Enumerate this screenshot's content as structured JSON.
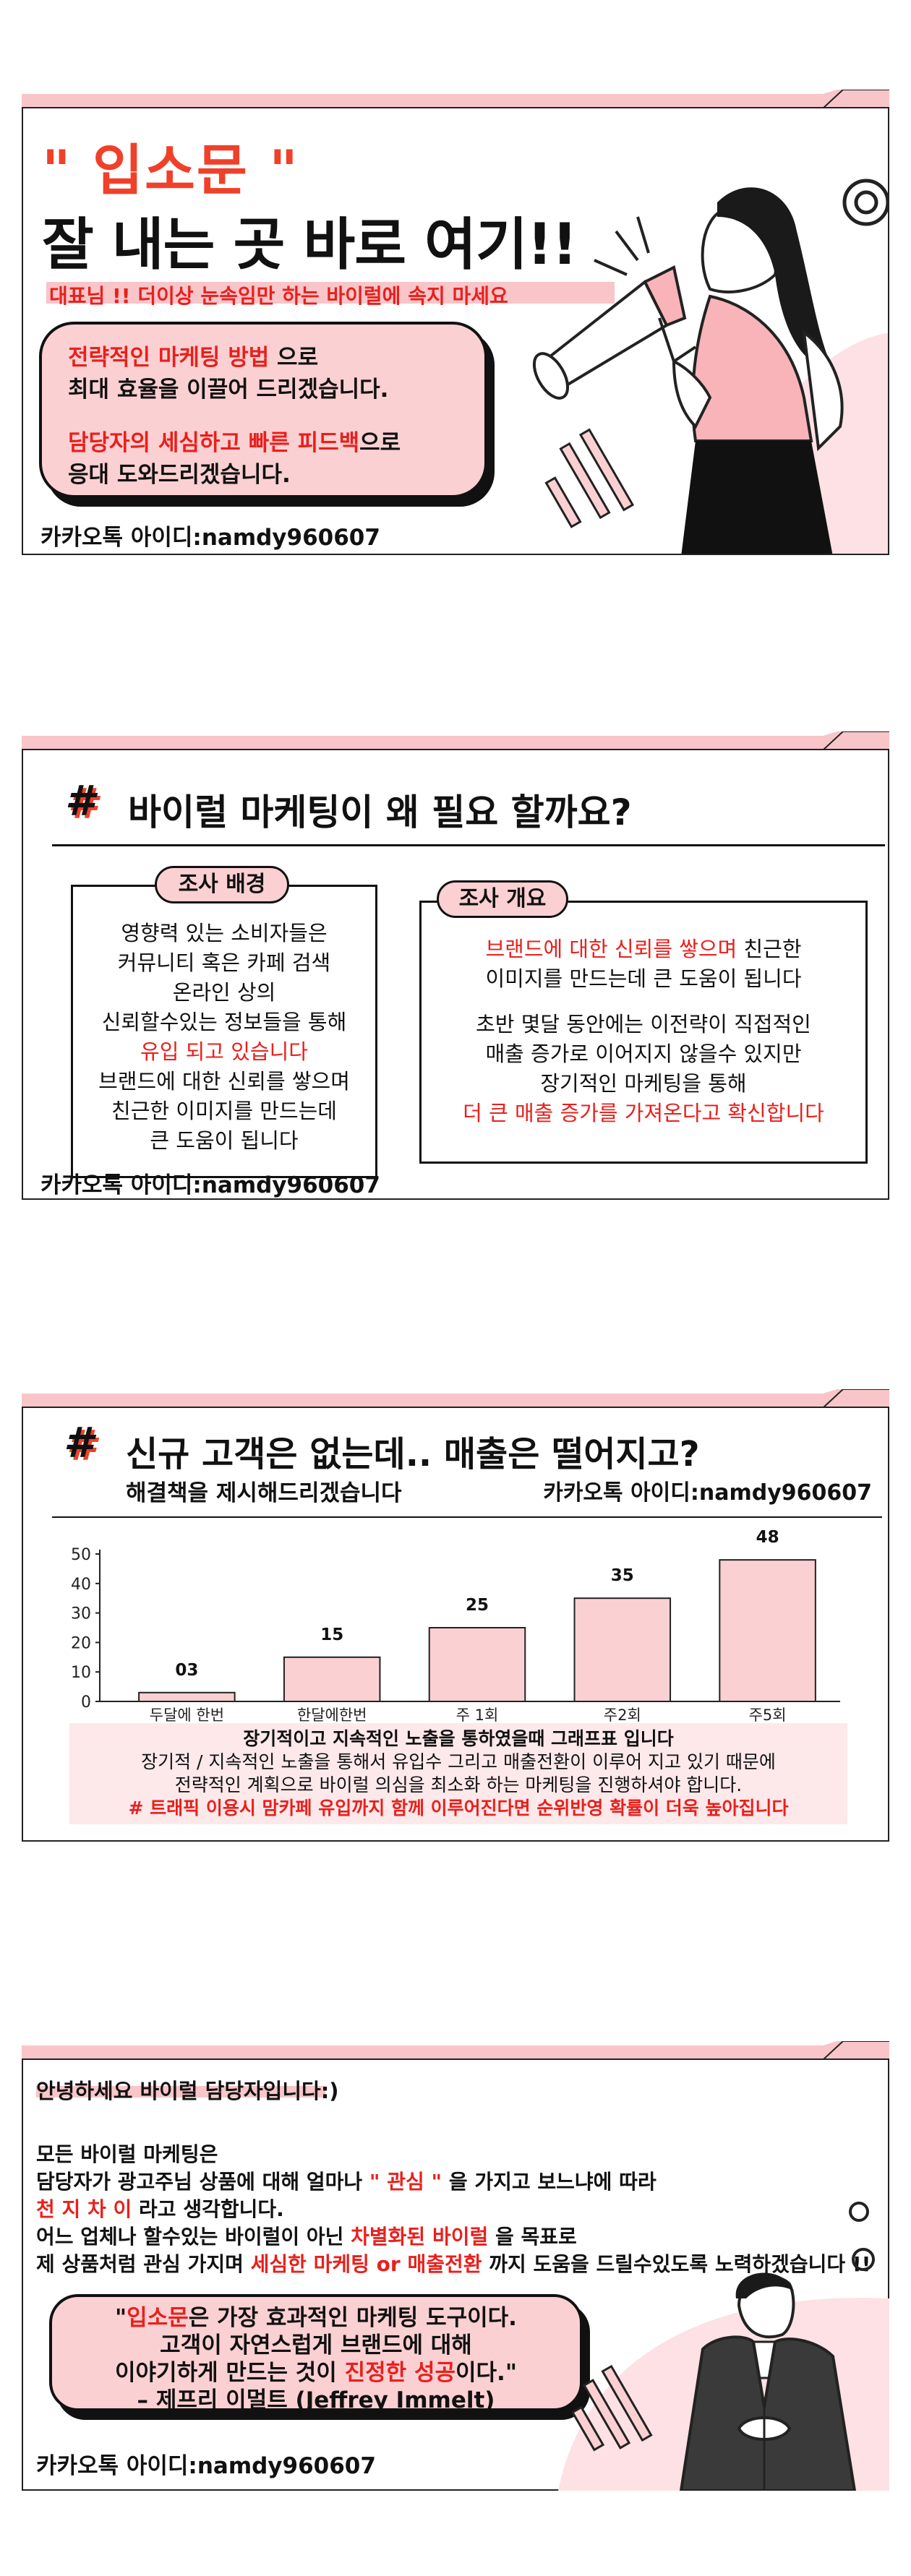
{
  "colors": {
    "accent": "#f0402a",
    "pink": "#fbd0d2",
    "tabPink": "#f8c5c9",
    "text": "#111111",
    "red": "#e8201c"
  },
  "panel1": {
    "quote_title": "\" 입소문 \"",
    "headline": "잘 내는 곳 바로 여기!!",
    "subline": "대표님 !! 더이상 눈속임만 하는 바이럴에 속지 마세요",
    "bubble": {
      "l1_red": "전략적인 마케팅 방법",
      "l1_rest": " 으로",
      "l2": "최대 효율을 이끌어 드리겠습니다.",
      "l3_red": "담당자의 세심하고 빠른 피드백",
      "l3_rest": "으로",
      "l4": "응대 도와드리겠습니다."
    },
    "kakao": "카카오톡 아이디:namdy960607"
  },
  "panel2": {
    "hash": "#",
    "title": "바이럴 마케팅이 왜 필요 할까요?",
    "left": {
      "pill": "조사 배경",
      "lines": [
        "영향력 있는 소비자들은",
        "커뮤니티 혹은 카페 검색",
        "온라인 상의",
        "신뢰할수있는 정보들을 통해"
      ],
      "red_line": "유입 되고 있습니다",
      "lines2": [
        "브랜드에 대한 신뢰를 쌓으며",
        "친근한 이미지를 만드는데",
        "큰 도움이 됩니다"
      ]
    },
    "right": {
      "pill": "조사 개요",
      "l1_red": "브랜드에 대한 신뢰를 쌓으며",
      "l1_rest": " 친근한",
      "l2": "이미지를 만드는데 큰 도움이 됩니다",
      "l3": "초반 몇달 동안에는 이전략이 직접적인",
      "l4": "매출 증가로 이어지지 않을수 있지만",
      "l5": "장기적인 마케팅을 통해",
      "l6_red": "더 큰 매출 증가를 가져온다고 확신합니다"
    },
    "kakao": "카카오톡 아이디:namdy960607"
  },
  "panel3": {
    "hash": "#",
    "title": "신규 고객은 없는데.. 매출은 떨어지고?",
    "sub": "해결책을 제시해드리겠습니다",
    "kakao": "카카오톡 아이디:namdy960607",
    "note": {
      "l1": "장기적이고 지속적인 노출을 통하였을때 그래프표 입니다",
      "l2": "장기적 / 지속적인 노출을 통해서 유입수 그리고 매출전환이 이루어 지고 있기 때문에",
      "l3": "전략적인 계획으로 바이럴 의심을 최소화 하는 마케팅을 진행하셔야 합니다.",
      "l4_red": "# 트래픽 이용시 맘카페 유입까지 함께 이루어진다면 순위반영 확률이 더욱 높아집니다"
    }
  },
  "chart_data": {
    "type": "bar",
    "categories": [
      "두달에 한번",
      "한달에한번",
      "주 1회",
      "주2회",
      "주5회"
    ],
    "values": [
      3,
      15,
      25,
      35,
      48
    ],
    "data_labels": [
      "03",
      "15",
      "25",
      "35",
      "48"
    ],
    "yticks": [
      0,
      10,
      20,
      30,
      40,
      50
    ],
    "ylim": [
      0,
      50
    ],
    "grid": false,
    "bar_color": "#fbd0d2"
  },
  "panel4": {
    "greet": "안녕하세요 바이럴 담당자입니다:)",
    "p1": "모든 바이럴 마케팅은",
    "p2a": "담당자가 광고주님 상품에 대해 얼마나 ",
    "p2_red": "\" 관심 \"",
    "p2b": " 을 가지고 보느냐에  따라",
    "p3_red": "천 지 차 이",
    "p3b": " 라고 생각합니다.",
    "p4a": "어느 업체나 할수있는 바이럴이 아닌 ",
    "p4_red": "차별화된 바이럴",
    "p4b": " 을 목표로",
    "p5a": "제 상품처럼 관심 가지며 ",
    "p5_red": "세심한 마케팅 or 매출전환",
    "p5b": " 까지 도움을 드릴수있도록 노력하겠습니다 !!",
    "quote": {
      "q1a": "\"",
      "q1_red": "입소문",
      "q1b": "은 가장 효과적인 마케팅 도구이다.",
      "q2": "고객이 자연스럽게 브랜드에 대해",
      "q3a": "이야기하게 만드는 것이 ",
      "q3_red": "진정한 성공",
      "q3b": "이다.\"",
      "q4": "– 제프리 이멀트 (Jeffrey Immelt)"
    },
    "kakao": "카카오톡 아이디:namdy960607"
  }
}
